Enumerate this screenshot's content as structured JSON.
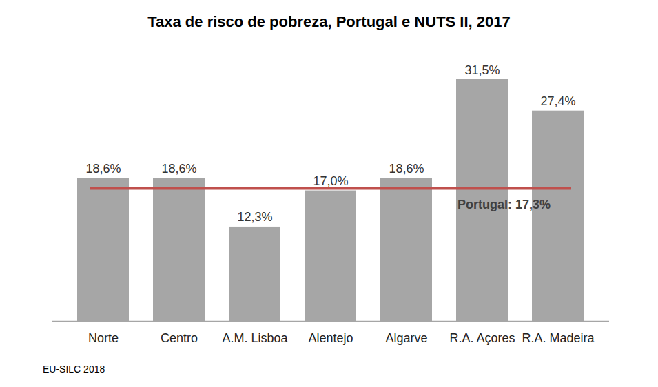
{
  "chart_data": {
    "type": "bar",
    "title": "Taxa de risco de pobreza, Portugal e NUTS II, 2017",
    "categories": [
      "Norte",
      "Centro",
      "A.M. Lisboa",
      "Alentejo",
      "Algarve",
      "R.A. Açores",
      "R.A. Madeira"
    ],
    "values": [
      18.6,
      18.6,
      12.3,
      17.0,
      18.6,
      31.5,
      27.4
    ],
    "value_labels": [
      "18,6%",
      "18,6%",
      "12,3%",
      "17,0%",
      "18,6%",
      "31,5%",
      "27,4%"
    ],
    "color": "#a6a6a6",
    "data_labels": true,
    "tick_labels": "x",
    "grid": false,
    "ylim": [
      0,
      35
    ],
    "reference_line": {
      "value": 17.3,
      "label": "Portugal: 17,3%",
      "color": "#c0504d"
    },
    "source": "EU-SILC 2018"
  }
}
